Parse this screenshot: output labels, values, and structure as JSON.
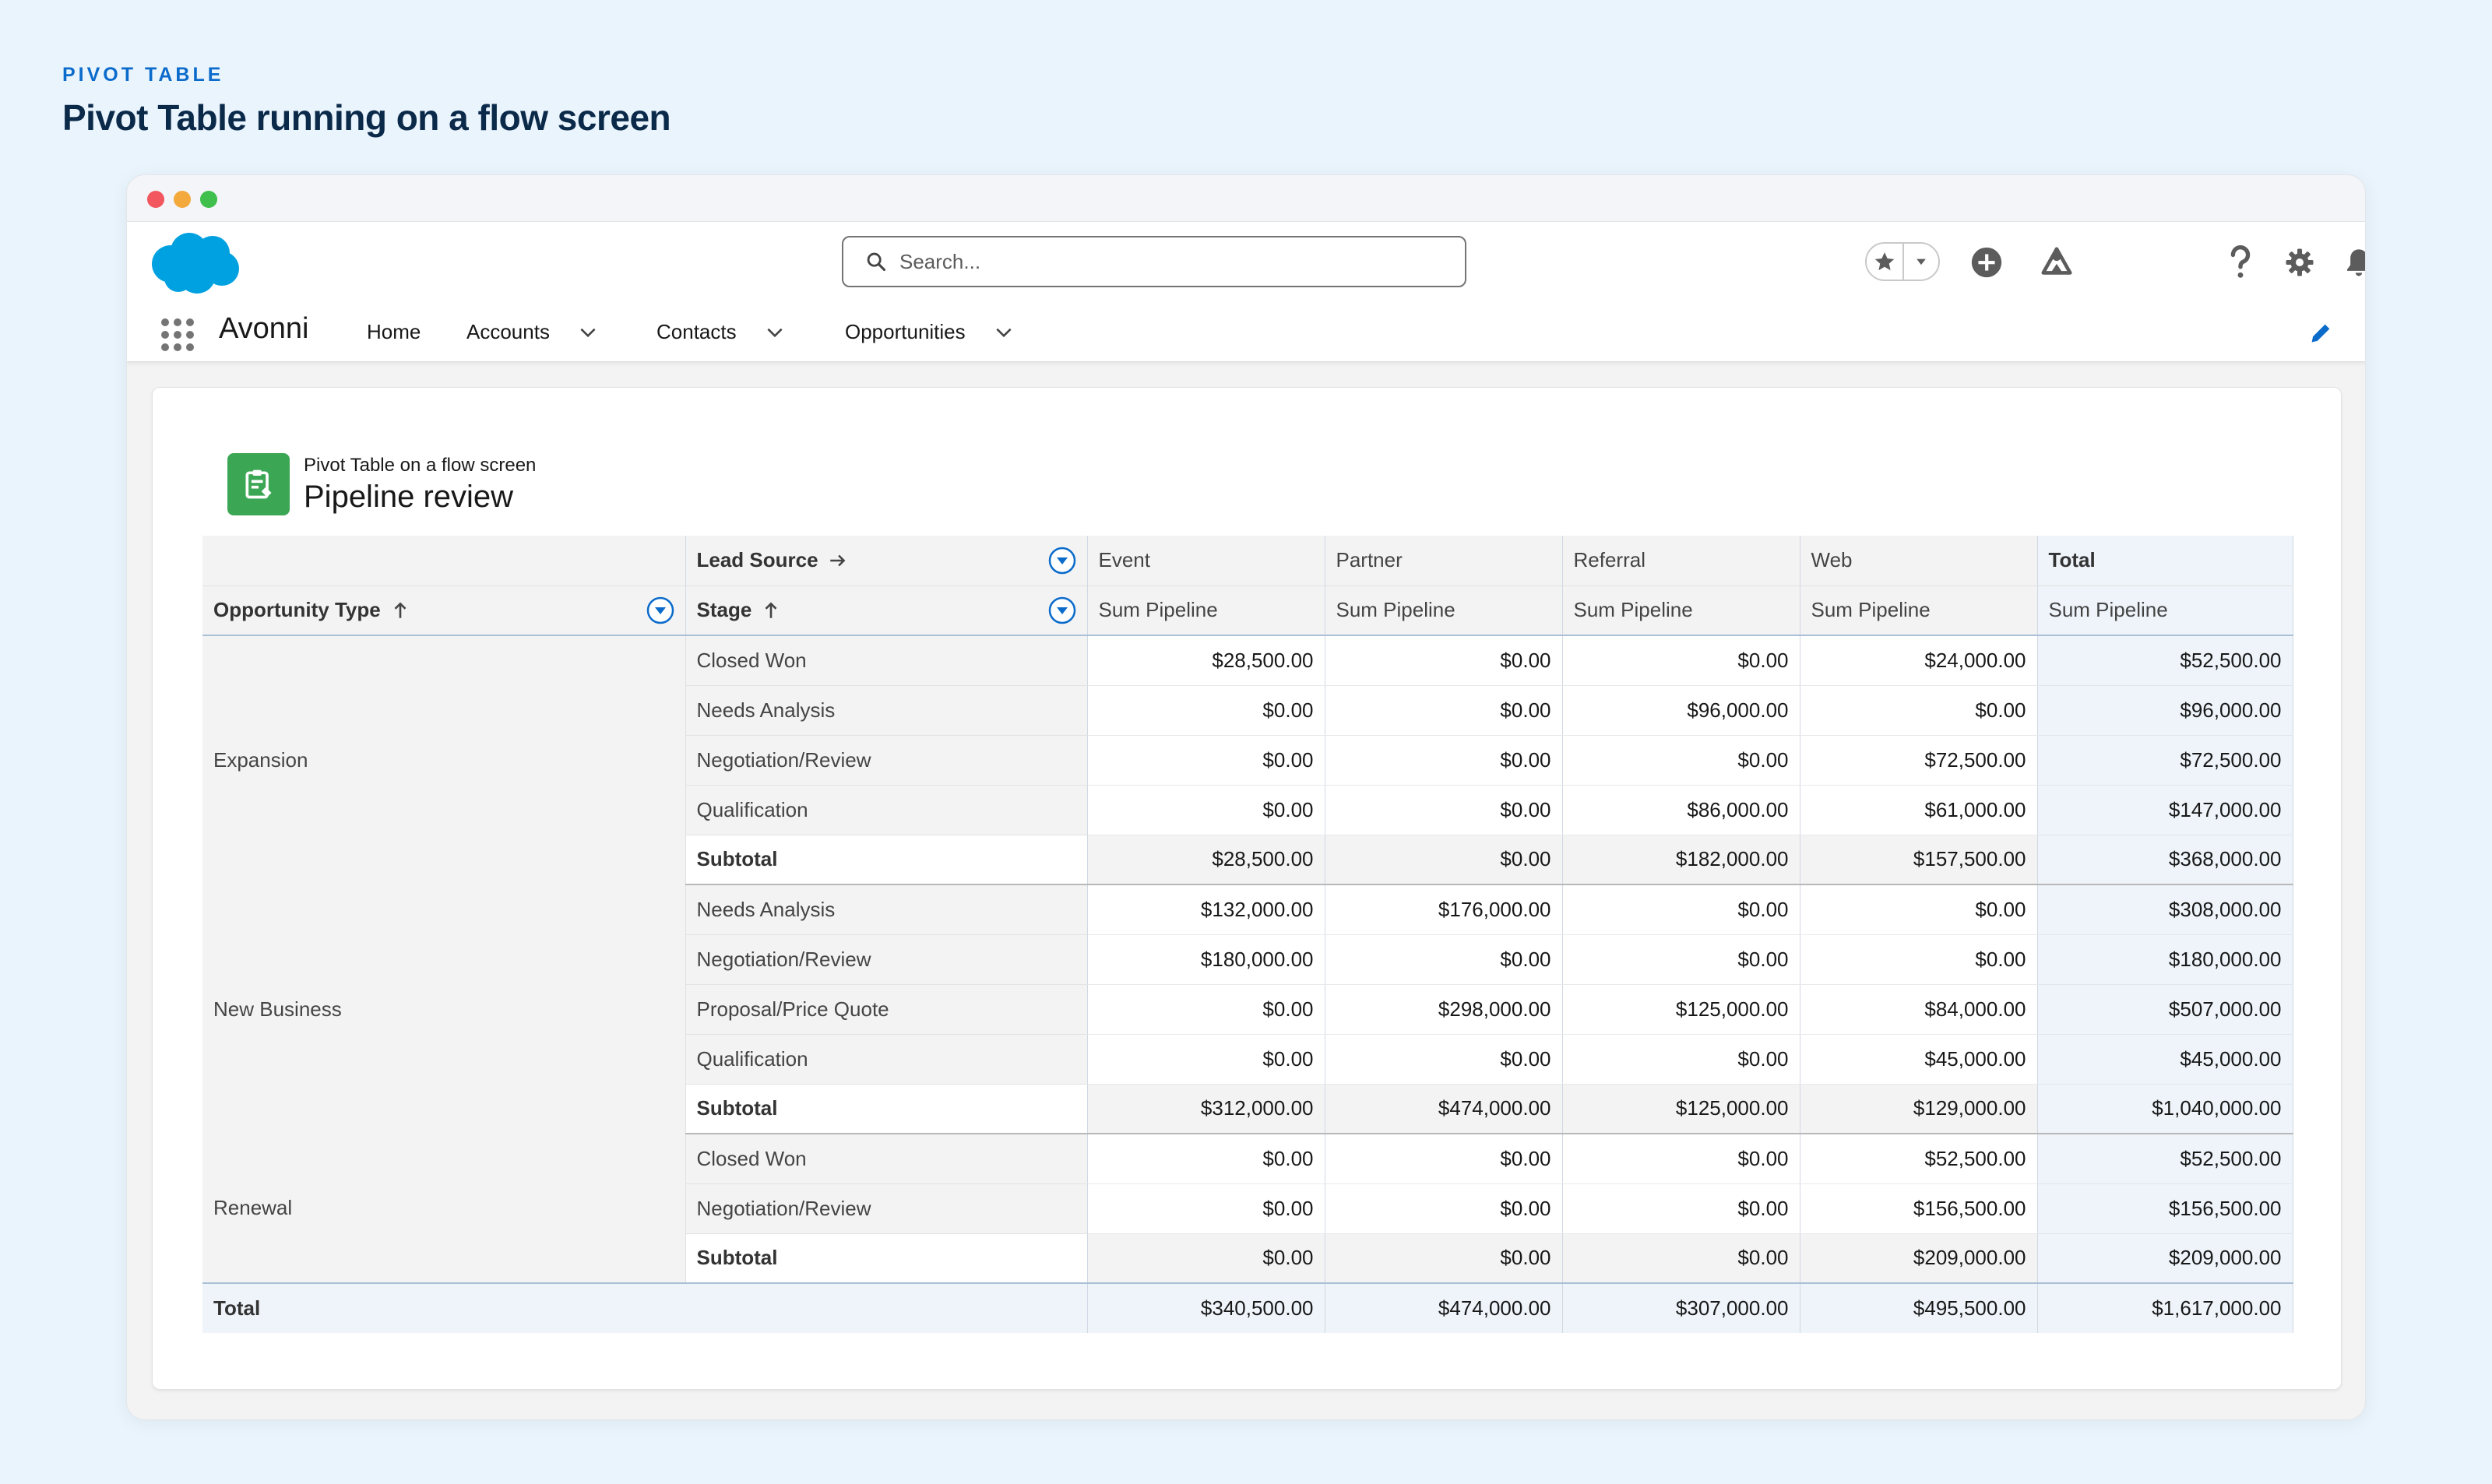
{
  "page": {
    "eyebrow": "PIVOT TABLE",
    "heading": "Pivot Table running on a flow screen"
  },
  "header": {
    "search_placeholder": "Search...",
    "app_name": "Avonni",
    "nav": [
      {
        "label": "Home"
      },
      {
        "label": "Accounts"
      },
      {
        "label": "Contacts"
      },
      {
        "label": "Opportunities"
      }
    ]
  },
  "record": {
    "subtitle": "Pivot Table on a flow screen",
    "title": "Pipeline review"
  },
  "pivot": {
    "column_field": "Lead Source",
    "row_fields": [
      "Opportunity Type",
      "Stage"
    ],
    "columns": [
      "Event",
      "Partner",
      "Referral",
      "Web",
      "Total"
    ],
    "measure": "Sum Pipeline",
    "groups": [
      {
        "type": "Expansion",
        "rows": [
          {
            "stage": "Closed Won",
            "values": [
              "$28,500.00",
              "$0.00",
              "$0.00",
              "$24,000.00",
              "$52,500.00"
            ]
          },
          {
            "stage": "Needs Analysis",
            "values": [
              "$0.00",
              "$0.00",
              "$96,000.00",
              "$0.00",
              "$96,000.00"
            ]
          },
          {
            "stage": "Negotiation/Review",
            "values": [
              "$0.00",
              "$0.00",
              "$0.00",
              "$72,500.00",
              "$72,500.00"
            ]
          },
          {
            "stage": "Qualification",
            "values": [
              "$0.00",
              "$0.00",
              "$86,000.00",
              "$61,000.00",
              "$147,000.00"
            ]
          }
        ],
        "subtotal_label": "Subtotal",
        "subtotal": [
          "$28,500.00",
          "$0.00",
          "$182,000.00",
          "$157,500.00",
          "$368,000.00"
        ]
      },
      {
        "type": "New Business",
        "rows": [
          {
            "stage": "Needs Analysis",
            "values": [
              "$132,000.00",
              "$176,000.00",
              "$0.00",
              "$0.00",
              "$308,000.00"
            ]
          },
          {
            "stage": "Negotiation/Review",
            "values": [
              "$180,000.00",
              "$0.00",
              "$0.00",
              "$0.00",
              "$180,000.00"
            ]
          },
          {
            "stage": "Proposal/Price Quote",
            "values": [
              "$0.00",
              "$298,000.00",
              "$125,000.00",
              "$84,000.00",
              "$507,000.00"
            ]
          },
          {
            "stage": "Qualification",
            "values": [
              "$0.00",
              "$0.00",
              "$0.00",
              "$45,000.00",
              "$45,000.00"
            ]
          }
        ],
        "subtotal_label": "Subtotal",
        "subtotal": [
          "$312,000.00",
          "$474,000.00",
          "$125,000.00",
          "$129,000.00",
          "$1,040,000.00"
        ]
      },
      {
        "type": "Renewal",
        "rows": [
          {
            "stage": "Closed Won",
            "values": [
              "$0.00",
              "$0.00",
              "$0.00",
              "$52,500.00",
              "$52,500.00"
            ]
          },
          {
            "stage": "Negotiation/Review",
            "values": [
              "$0.00",
              "$0.00",
              "$0.00",
              "$156,500.00",
              "$156,500.00"
            ]
          }
        ],
        "subtotal_label": "Subtotal",
        "subtotal": [
          "$0.00",
          "$0.00",
          "$0.00",
          "$209,000.00",
          "$209,000.00"
        ]
      }
    ],
    "grand_total_label": "Total",
    "grand_total": [
      "$340,500.00",
      "$474,000.00",
      "$307,000.00",
      "$495,500.00",
      "$1,617,000.00"
    ]
  },
  "colors": {
    "brand_blue": "#0b6bcb",
    "salesforce_cloud": "#00a1e0",
    "record_icon_green": "#3ba755",
    "total_column_bg": "#eef4fa"
  }
}
